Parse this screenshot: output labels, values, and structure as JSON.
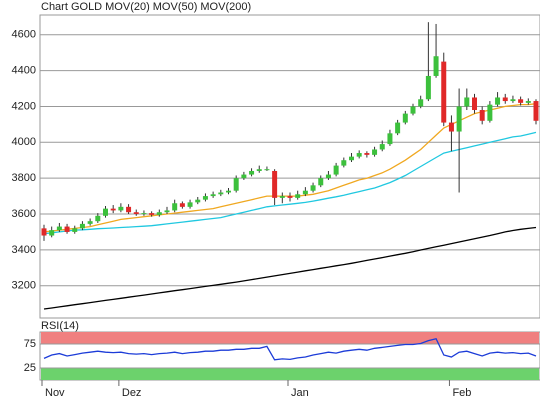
{
  "chart_data": [
    {
      "type": "candlestick",
      "up_color": "#3cc03c",
      "down_color": "#e02828",
      "wick_color": "#333333",
      "ylim": [
        3020,
        4710
      ],
      "yticks": [
        3200,
        3400,
        3600,
        3800,
        4000,
        4200,
        4400,
        4600
      ],
      "grid": true,
      "series": [
        {
          "name": "Chart GOLD",
          "color": "#e02828",
          "open": [
            3520,
            3480,
            3510,
            3530,
            3500,
            3520,
            3545,
            3560,
            3590,
            3630,
            3620,
            3640,
            3610,
            3600,
            3605,
            3595,
            3610,
            3620,
            3660,
            3640,
            3665,
            3680,
            3700,
            3710,
            3720,
            3730,
            3800,
            3820,
            3840,
            3850,
            3840,
            3690,
            3700,
            3690,
            3710,
            3730,
            3760,
            3800,
            3820,
            3870,
            3900,
            3920,
            3940,
            3930,
            3960,
            3990,
            4050,
            4110,
            4160,
            4200,
            4240,
            4370,
            4450,
            4110,
            4060,
            4200,
            4250,
            4180,
            4120,
            4210,
            4250,
            4230,
            4240,
            4220,
            4230
          ],
          "high": [
            3540,
            3530,
            3550,
            3545,
            3535,
            3560,
            3575,
            3605,
            3645,
            3650,
            3660,
            3655,
            3625,
            3620,
            3615,
            3625,
            3640,
            3680,
            3670,
            3680,
            3695,
            3715,
            3725,
            3735,
            3745,
            3815,
            3835,
            3855,
            3870,
            3865,
            3850,
            3720,
            3720,
            3730,
            3750,
            3775,
            3815,
            3840,
            3885,
            3915,
            3940,
            3955,
            3950,
            3975,
            4010,
            4070,
            4125,
            4175,
            4215,
            4260,
            4670,
            4660,
            4500,
            4150,
            4300,
            4300,
            4270,
            4200,
            4230,
            4280,
            4270,
            4260,
            4255,
            4245,
            4240
          ],
          "low": [
            3450,
            3470,
            3500,
            3490,
            3490,
            3510,
            3535,
            3550,
            3580,
            3605,
            3610,
            3600,
            3590,
            3590,
            3585,
            3585,
            3600,
            3610,
            3630,
            3630,
            3655,
            3670,
            3690,
            3700,
            3710,
            3720,
            3790,
            3810,
            3830,
            3840,
            3650,
            3660,
            3670,
            3680,
            3700,
            3720,
            3750,
            3790,
            3810,
            3860,
            3890,
            3910,
            3915,
            3920,
            3950,
            3980,
            4040,
            4100,
            4150,
            4190,
            4230,
            4360,
            4090,
            3950,
            3720,
            4180,
            4160,
            4100,
            4110,
            4200,
            4215,
            4220,
            4205,
            4210,
            4100
          ],
          "close": [
            3480,
            3510,
            3530,
            3500,
            3520,
            3545,
            3560,
            3590,
            3630,
            3620,
            3640,
            3610,
            3600,
            3605,
            3595,
            3610,
            3620,
            3660,
            3640,
            3665,
            3680,
            3700,
            3710,
            3720,
            3730,
            3800,
            3820,
            3840,
            3850,
            3850,
            3690,
            3700,
            3690,
            3710,
            3730,
            3760,
            3800,
            3820,
            3870,
            3900,
            3920,
            3940,
            3930,
            3960,
            3990,
            4050,
            4110,
            4160,
            4200,
            4240,
            4370,
            4480,
            4110,
            4060,
            4200,
            4250,
            4180,
            4120,
            4210,
            4250,
            4230,
            4240,
            4220,
            4230,
            4120
          ]
        },
        {
          "name": "MOV(20)",
          "color": "#f0a820",
          "values": [
            3500,
            3505,
            3510,
            3515,
            3520,
            3525,
            3530,
            3540,
            3550,
            3560,
            3570,
            3575,
            3580,
            3585,
            3590,
            3595,
            3600,
            3605,
            3610,
            3615,
            3620,
            3625,
            3630,
            3640,
            3650,
            3660,
            3670,
            3680,
            3690,
            3700,
            3700,
            3700,
            3700,
            3700,
            3705,
            3710,
            3720,
            3730,
            3745,
            3760,
            3775,
            3790,
            3800,
            3815,
            3830,
            3850,
            3875,
            3900,
            3930,
            3960,
            4000,
            4040,
            4080,
            4100,
            4120,
            4140,
            4160,
            4170,
            4180,
            4190,
            4200,
            4205,
            4210,
            4210,
            4215
          ]
        },
        {
          "name": "MOV(50)",
          "color": "#20c8e0",
          "values": [
            3490,
            3495,
            3500,
            3505,
            3510,
            3512,
            3515,
            3518,
            3520,
            3522,
            3525,
            3527,
            3530,
            3532,
            3535,
            3540,
            3545,
            3550,
            3555,
            3560,
            3565,
            3570,
            3575,
            3580,
            3590,
            3600,
            3610,
            3620,
            3630,
            3640,
            3645,
            3650,
            3655,
            3660,
            3665,
            3672,
            3680,
            3688,
            3696,
            3705,
            3715,
            3725,
            3735,
            3745,
            3760,
            3775,
            3795,
            3815,
            3840,
            3865,
            3890,
            3915,
            3940,
            3950,
            3960,
            3970,
            3980,
            3990,
            4000,
            4010,
            4020,
            4030,
            4035,
            4045,
            4055
          ]
        },
        {
          "name": "MOV(200)",
          "color": "#000000",
          "values": [
            3070,
            3076,
            3082,
            3088,
            3094,
            3100,
            3106,
            3112,
            3118,
            3124,
            3130,
            3136,
            3142,
            3148,
            3154,
            3160,
            3166,
            3172,
            3178,
            3184,
            3190,
            3196,
            3202,
            3208,
            3214,
            3220,
            3227,
            3234,
            3241,
            3248,
            3255,
            3262,
            3269,
            3276,
            3283,
            3290,
            3297,
            3304,
            3311,
            3318,
            3325,
            3333,
            3341,
            3349,
            3357,
            3365,
            3373,
            3381,
            3390,
            3399,
            3408,
            3417,
            3426,
            3435,
            3444,
            3453,
            3462,
            3471,
            3480,
            3490,
            3500,
            3508,
            3515,
            3520,
            3525
          ]
        }
      ]
    },
    {
      "type": "line",
      "title": "RSI(14)",
      "ylim": [
        0,
        100
      ],
      "yticks": [
        25,
        75
      ],
      "grid": true,
      "bands": [
        {
          "from": 75,
          "to": 100,
          "color": "#f08080"
        },
        {
          "from": 0,
          "to": 25,
          "color": "#6cd26c"
        }
      ],
      "categories": [
        "Nov",
        null,
        null,
        null,
        null,
        null,
        null,
        null,
        null,
        null,
        "Dez",
        null,
        null,
        null,
        null,
        null,
        null,
        null,
        null,
        null,
        null,
        null,
        null,
        null,
        null,
        null,
        null,
        null,
        null,
        null,
        null,
        null,
        "Jan",
        null,
        null,
        null,
        null,
        null,
        null,
        null,
        null,
        null,
        null,
        null,
        null,
        null,
        null,
        null,
        null,
        null,
        null,
        null,
        null,
        "Feb",
        null,
        null,
        null,
        null,
        null,
        null,
        null,
        null,
        null,
        null,
        null
      ],
      "series": [
        {
          "color": "#1c3cd8",
          "values": [
            45,
            52,
            55,
            50,
            53,
            56,
            58,
            60,
            58,
            57,
            58,
            55,
            54,
            55,
            53,
            55,
            56,
            58,
            55,
            57,
            58,
            60,
            60,
            62,
            62,
            64,
            64,
            66,
            66,
            70,
            42,
            44,
            43,
            46,
            48,
            52,
            55,
            58,
            56,
            60,
            62,
            64,
            62,
            66,
            68,
            70,
            72,
            74,
            74,
            76,
            82,
            86,
            52,
            48,
            58,
            60,
            55,
            50,
            56,
            58,
            56,
            57,
            55,
            56,
            50
          ]
        }
      ]
    }
  ]
}
